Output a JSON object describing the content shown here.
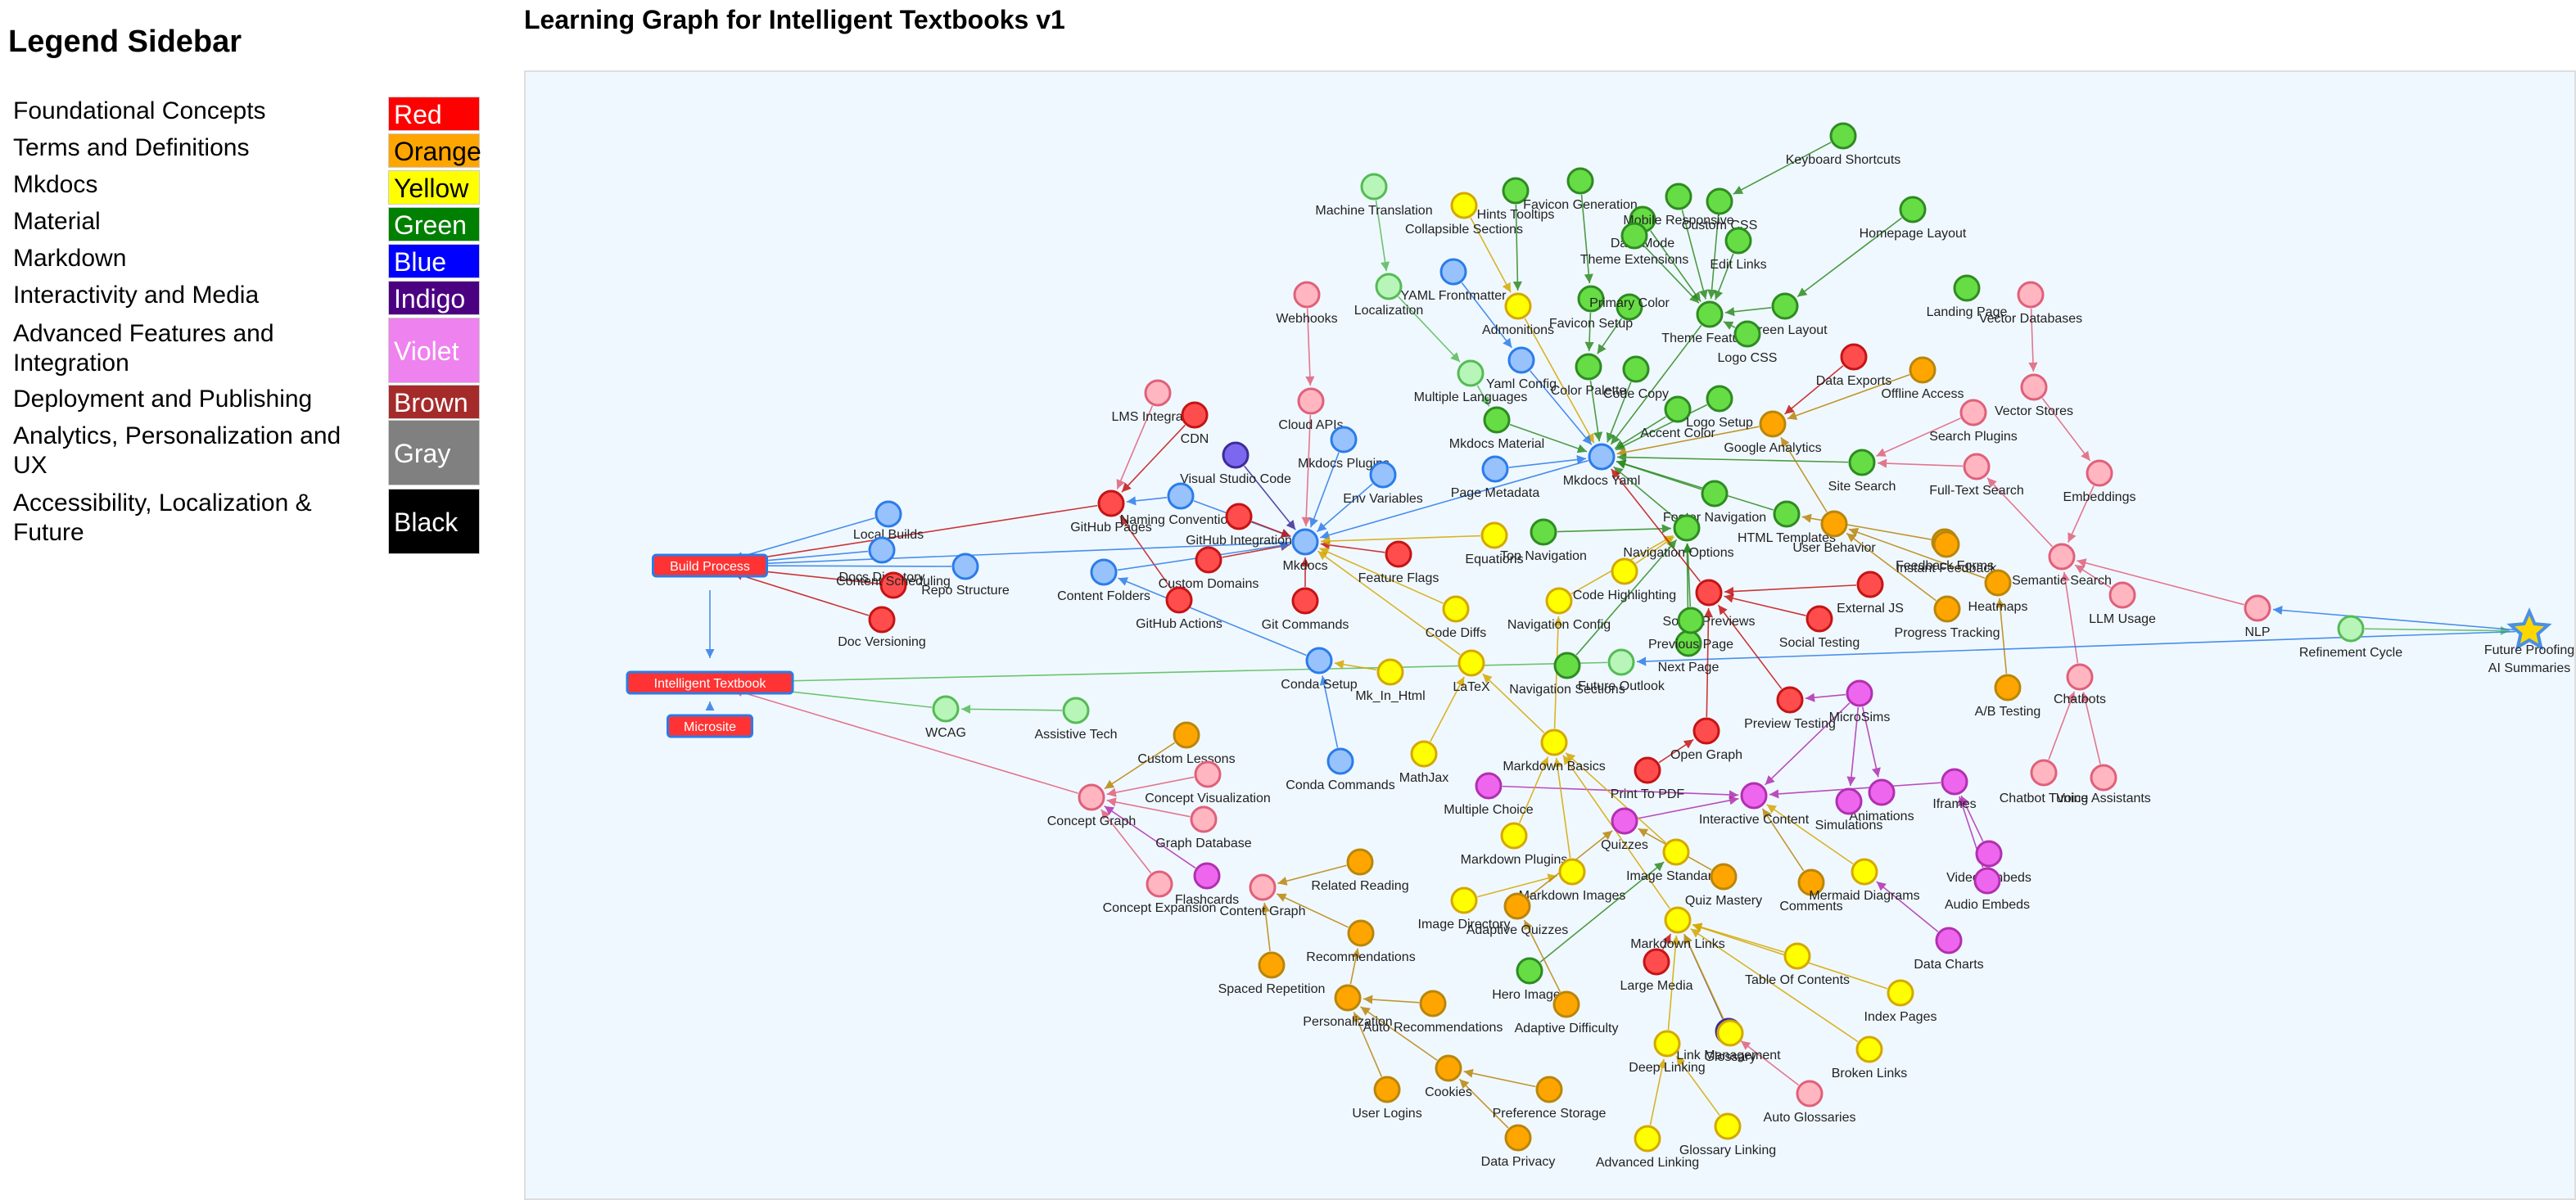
{
  "sidebar": {
    "title": "Legend Sidebar",
    "legend": [
      {
        "label": "Foundational Concepts",
        "color_name": "Red",
        "color": "#ff0000",
        "text_color": "#ffffff"
      },
      {
        "label": "Terms and Definitions",
        "color_name": "Orange",
        "color": "#ffa500",
        "text_color": "#000000"
      },
      {
        "label": "Mkdocs",
        "color_name": "Yellow",
        "color": "#ffff00",
        "text_color": "#000000"
      },
      {
        "label": "Material",
        "color_name": "Green",
        "color": "#008000",
        "text_color": "#ffffff"
      },
      {
        "label": "Markdown",
        "color_name": "Blue",
        "color": "#0000ff",
        "text_color": "#ffffff"
      },
      {
        "label": "Interactivity and Media",
        "color_name": "Indigo",
        "color": "#4b0082",
        "text_color": "#ffffff"
      },
      {
        "label": "Advanced Features and Integration",
        "color_name": "Violet",
        "color": "#ee82ee",
        "text_color": "#ffffff"
      },
      {
        "label": "Deployment and Publishing",
        "color_name": "Brown",
        "color": "#a52a2a",
        "text_color": "#ffffff"
      },
      {
        "label": "Analytics, Personalization and UX",
        "color_name": "Gray",
        "color": "#808080",
        "text_color": "#ffffff"
      },
      {
        "label": "Accessibility, Localization & Future",
        "color_name": "Black",
        "color": "#000000",
        "text_color": "#ffffff"
      }
    ]
  },
  "header": {
    "title": "Learning Graph for Intelligent Textbooks v1"
  },
  "palette": {
    "red": "#ff4d4d",
    "red_border": "#c41414",
    "orange": "#ffa500",
    "orange_border": "#b8860b",
    "yellow": "#ffff00",
    "yellow_border": "#d4a800",
    "green": "#66dd44",
    "green_border": "#2e8b22",
    "lightgreen": "#b8f5b8",
    "lightgreen_border": "#55bb55",
    "blue": "#97c2fc",
    "blue_border": "#2b7ce9",
    "indigo": "#7b68ee",
    "indigo_border": "#3d2b9a",
    "violet": "#ee66ee",
    "violet_border": "#b030b0",
    "pink": "#ffb6c1",
    "pink_border": "#e0607a",
    "box": "#ff3333",
    "box_border": "#2b7ce9",
    "star": "#4a90e2",
    "star_center": "#ffd700"
  },
  "graph": {
    "boxes": [
      {
        "id": "build",
        "label": "Build Process"
      },
      {
        "id": "itext",
        "label": "Intelligent Textbook"
      },
      {
        "id": "micro",
        "label": "Microsite"
      }
    ],
    "nodes": [
      {
        "id": "n1",
        "label": "Keyboard Shortcuts",
        "c": "green"
      },
      {
        "id": "n2",
        "label": "Machine Translation",
        "c": "lightgreen"
      },
      {
        "id": "n3",
        "label": "Collapsible Sections",
        "c": "yellow"
      },
      {
        "id": "n4",
        "label": "Hints Tooltips",
        "c": "green"
      },
      {
        "id": "n5",
        "label": "Favicon Generation",
        "c": "green"
      },
      {
        "id": "n6",
        "label": "Dark Mode",
        "c": "green"
      },
      {
        "id": "n7",
        "label": "Mobile Responsive",
        "c": "green"
      },
      {
        "id": "n8",
        "label": "Custom CSS",
        "c": "green"
      },
      {
        "id": "n9",
        "label": "Homepage Layout",
        "c": "green"
      },
      {
        "id": "n10",
        "label": "Theme Extensions",
        "c": "green"
      },
      {
        "id": "n11",
        "label": "Edit Links",
        "c": "green"
      },
      {
        "id": "n12",
        "label": "Localization",
        "c": "lightgreen"
      },
      {
        "id": "n13",
        "label": "YAML Frontmatter",
        "c": "blue"
      },
      {
        "id": "n14",
        "label": "Webhooks",
        "c": "pink"
      },
      {
        "id": "n15",
        "label": "Admonitions",
        "c": "yellow"
      },
      {
        "id": "n16",
        "label": "Favicon Setup",
        "c": "green"
      },
      {
        "id": "n17",
        "label": "Primary Color",
        "c": "green"
      },
      {
        "id": "n18",
        "label": "Theme Features",
        "c": "green"
      },
      {
        "id": "n19",
        "label": "Screen Layout",
        "c": "green"
      },
      {
        "id": "n20",
        "label": "Logo CSS",
        "c": "green"
      },
      {
        "id": "n21",
        "label": "Landing Page",
        "c": "green"
      },
      {
        "id": "n22",
        "label": "Vector Databases",
        "c": "pink"
      },
      {
        "id": "n23",
        "label": "Yaml Config",
        "c": "blue"
      },
      {
        "id": "n24",
        "label": "Multiple Languages",
        "c": "lightgreen"
      },
      {
        "id": "n25",
        "label": "Color Palette",
        "c": "green"
      },
      {
        "id": "n26",
        "label": "Code Copy",
        "c": "green"
      },
      {
        "id": "n27",
        "label": "Data Exports",
        "c": "red"
      },
      {
        "id": "n28",
        "label": "Offline Access",
        "c": "orange"
      },
      {
        "id": "n29",
        "label": "Cloud APIs",
        "c": "pink"
      },
      {
        "id": "n30",
        "label": "LMS Integration",
        "c": "pink"
      },
      {
        "id": "n31",
        "label": "CDN",
        "c": "red"
      },
      {
        "id": "n32",
        "label": "Mkdocs Material",
        "c": "green"
      },
      {
        "id": "n33",
        "label": "Accent Color",
        "c": "green"
      },
      {
        "id": "n34",
        "label": "Logo Setup",
        "c": "green"
      },
      {
        "id": "n35",
        "label": "Google Analytics",
        "c": "orange"
      },
      {
        "id": "n36",
        "label": "Search Plugins",
        "c": "pink"
      },
      {
        "id": "n37",
        "label": "Vector Stores",
        "c": "pink"
      },
      {
        "id": "n38",
        "label": "Visual Studio Code",
        "c": "indigo"
      },
      {
        "id": "n39",
        "label": "Mkdocs Plugins",
        "c": "blue"
      },
      {
        "id": "n40",
        "label": "Env Variables",
        "c": "blue"
      },
      {
        "id": "n41",
        "label": "Page Metadata",
        "c": "blue"
      },
      {
        "id": "n42",
        "label": "Mkdocs Yaml",
        "c": "blue"
      },
      {
        "id": "n43",
        "label": "Site Search",
        "c": "green"
      },
      {
        "id": "n44",
        "label": "Full-Text Search",
        "c": "pink"
      },
      {
        "id": "n45",
        "label": "Embeddings",
        "c": "pink"
      },
      {
        "id": "n46",
        "label": "Local Builds",
        "c": "blue"
      },
      {
        "id": "n47",
        "label": "GitHub Pages",
        "c": "red"
      },
      {
        "id": "n48",
        "label": "Naming Conventions",
        "c": "blue"
      },
      {
        "id": "n49",
        "label": "GitHub Integration",
        "c": "red"
      },
      {
        "id": "n50",
        "label": "Mkdocs",
        "c": "blue"
      },
      {
        "id": "n51",
        "label": "Footer Navigation",
        "c": "green"
      },
      {
        "id": "n52",
        "label": "HTML Templates",
        "c": "green"
      },
      {
        "id": "n53",
        "label": "User Behavior",
        "c": "orange"
      },
      {
        "id": "n54",
        "label": "Feedback Forms",
        "c": "orange"
      },
      {
        "id": "n55",
        "label": "Docs Directory",
        "c": "blue"
      },
      {
        "id": "n56",
        "label": "Repo Structure",
        "c": "blue"
      },
      {
        "id": "n57",
        "label": "Content Scheduling",
        "c": "red"
      },
      {
        "id": "n58",
        "label": "Custom Domains",
        "c": "red"
      },
      {
        "id": "n59",
        "label": "Content Folders",
        "c": "blue"
      },
      {
        "id": "n60",
        "label": "Feature Flags",
        "c": "red"
      },
      {
        "id": "n61",
        "label": "Equations",
        "c": "yellow"
      },
      {
        "id": "n62",
        "label": "Top Navigation",
        "c": "green"
      },
      {
        "id": "n63",
        "label": "Navigation Options",
        "c": "green"
      },
      {
        "id": "n64",
        "label": "Instant Feedback",
        "c": "orange"
      },
      {
        "id": "n65",
        "label": "Semantic Search",
        "c": "pink"
      },
      {
        "id": "n66",
        "label": "Doc Versioning",
        "c": "red"
      },
      {
        "id": "n67",
        "label": "GitHub Actions",
        "c": "red"
      },
      {
        "id": "n68",
        "label": "Git Commands",
        "c": "red"
      },
      {
        "id": "n69",
        "label": "Code Diffs",
        "c": "yellow"
      },
      {
        "id": "n70",
        "label": "Navigation Config",
        "c": "yellow"
      },
      {
        "id": "n71",
        "label": "Code Highlighting",
        "c": "yellow"
      },
      {
        "id": "n72",
        "label": "Social Previews",
        "c": "red"
      },
      {
        "id": "n73",
        "label": "External JS",
        "c": "red"
      },
      {
        "id": "n74",
        "label": "Heatmaps",
        "c": "orange"
      },
      {
        "id": "n75",
        "label": "Progress Tracking",
        "c": "orange"
      },
      {
        "id": "n76",
        "label": "LLM Usage",
        "c": "pink"
      },
      {
        "id": "n77",
        "label": "NLP",
        "c": "pink"
      },
      {
        "id": "n78",
        "label": "Refinement Cycle",
        "c": "lightgreen"
      },
      {
        "id": "n79",
        "label": "Next Page",
        "c": "green"
      },
      {
        "id": "n80",
        "label": "Previous Page",
        "c": "green"
      },
      {
        "id": "n81",
        "label": "Social Testing",
        "c": "red"
      },
      {
        "id": "n82",
        "label": "Conda Setup",
        "c": "blue"
      },
      {
        "id": "n83",
        "label": "Mk_In_Html",
        "c": "yellow"
      },
      {
        "id": "n84",
        "label": "LaTeX",
        "c": "yellow"
      },
      {
        "id": "n85",
        "label": "Navigation Sections",
        "c": "green"
      },
      {
        "id": "n86",
        "label": "Future Outlook",
        "c": "lightgreen"
      },
      {
        "id": "n87",
        "label": "Chatbots",
        "c": "pink"
      },
      {
        "id": "n88",
        "label": "A/B Testing",
        "c": "orange"
      },
      {
        "id": "n89",
        "label": "WCAG",
        "c": "lightgreen"
      },
      {
        "id": "n90",
        "label": "Assistive Tech",
        "c": "lightgreen"
      },
      {
        "id": "n91",
        "label": "Preview Testing",
        "c": "red"
      },
      {
        "id": "n92",
        "label": "MicroSims",
        "c": "violet"
      },
      {
        "id": "n93",
        "label": "Open Graph",
        "c": "red"
      },
      {
        "id": "n94",
        "label": "Custom Lessons",
        "c": "orange"
      },
      {
        "id": "n95",
        "label": "Conda Commands",
        "c": "blue"
      },
      {
        "id": "n96",
        "label": "MathJax",
        "c": "yellow"
      },
      {
        "id": "n97",
        "label": "Markdown Basics",
        "c": "yellow"
      },
      {
        "id": "n98",
        "label": "Print To PDF",
        "c": "red"
      },
      {
        "id": "n99",
        "label": "Iframes",
        "c": "violet"
      },
      {
        "id": "n100",
        "label": "Chatbot Tuning",
        "c": "pink"
      },
      {
        "id": "n101",
        "label": "Voice Assistants",
        "c": "pink"
      },
      {
        "id": "n102",
        "label": "Concept Visualization",
        "c": "pink"
      },
      {
        "id": "n103",
        "label": "Concept Graph",
        "c": "pink"
      },
      {
        "id": "n104",
        "label": "Multiple Choice",
        "c": "violet"
      },
      {
        "id": "n105",
        "label": "Interactive Content",
        "c": "violet"
      },
      {
        "id": "n106",
        "label": "Animations",
        "c": "violet"
      },
      {
        "id": "n107",
        "label": "Simulations",
        "c": "violet"
      },
      {
        "id": "n108",
        "label": "Graph Database",
        "c": "pink"
      },
      {
        "id": "n109",
        "label": "Quizzes",
        "c": "violet"
      },
      {
        "id": "n110",
        "label": "Markdown Plugins",
        "c": "yellow"
      },
      {
        "id": "n111",
        "label": "Image Standards",
        "c": "yellow"
      },
      {
        "id": "n112",
        "label": "Video Embeds",
        "c": "violet"
      },
      {
        "id": "n113",
        "label": "Related Reading",
        "c": "orange"
      },
      {
        "id": "n114",
        "label": "Flashcards",
        "c": "violet"
      },
      {
        "id": "n115",
        "label": "Content Graph",
        "c": "pink"
      },
      {
        "id": "n116",
        "label": "Concept Expansion",
        "c": "pink"
      },
      {
        "id": "n117",
        "label": "Markdown Images",
        "c": "yellow"
      },
      {
        "id": "n118",
        "label": "Quiz Mastery",
        "c": "orange"
      },
      {
        "id": "n119",
        "label": "Comments",
        "c": "orange"
      },
      {
        "id": "n120",
        "label": "Mermaid Diagrams",
        "c": "yellow"
      },
      {
        "id": "n121",
        "label": "Audio Embeds",
        "c": "violet"
      },
      {
        "id": "n122",
        "label": "Image Directory",
        "c": "yellow"
      },
      {
        "id": "n123",
        "label": "Adaptive Quizzes",
        "c": "orange"
      },
      {
        "id": "n124",
        "label": "Recommendations",
        "c": "orange"
      },
      {
        "id": "n125",
        "label": "Markdown Links",
        "c": "yellow"
      },
      {
        "id": "n126",
        "label": "Data Charts",
        "c": "violet"
      },
      {
        "id": "n127",
        "label": "Spaced Repetition",
        "c": "orange"
      },
      {
        "id": "n128",
        "label": "Hero Images",
        "c": "green"
      },
      {
        "id": "n129",
        "label": "Large Media",
        "c": "red"
      },
      {
        "id": "n130",
        "label": "Table Of Contents",
        "c": "yellow"
      },
      {
        "id": "n131",
        "label": "Index Pages",
        "c": "yellow"
      },
      {
        "id": "n132",
        "label": "Personalization",
        "c": "orange"
      },
      {
        "id": "n133",
        "label": "Auto Recommendations",
        "c": "orange"
      },
      {
        "id": "n134",
        "label": "Adaptive Difficulty",
        "c": "orange"
      },
      {
        "id": "n135",
        "label": "Link Management",
        "c": "indigo"
      },
      {
        "id": "n136",
        "label": "Deep Linking",
        "c": "yellow"
      },
      {
        "id": "n137",
        "label": "Glossary",
        "c": "yellow"
      },
      {
        "id": "n138",
        "label": "Broken Links",
        "c": "yellow"
      },
      {
        "id": "n139",
        "label": "Cookies",
        "c": "orange"
      },
      {
        "id": "n140",
        "label": "User Logins",
        "c": "orange"
      },
      {
        "id": "n141",
        "label": "Preference Storage",
        "c": "orange"
      },
      {
        "id": "n142",
        "label": "Auto Glossaries",
        "c": "pink"
      },
      {
        "id": "n143",
        "label": "Data Privacy",
        "c": "orange"
      },
      {
        "id": "n144",
        "label": "Advanced Linking",
        "c": "yellow"
      },
      {
        "id": "n145",
        "label": "Glossary Linking",
        "c": "yellow"
      }
    ],
    "star": {
      "id": "future",
      "label": "Future Proofing",
      "sublabel": "AI Summaries"
    }
  }
}
